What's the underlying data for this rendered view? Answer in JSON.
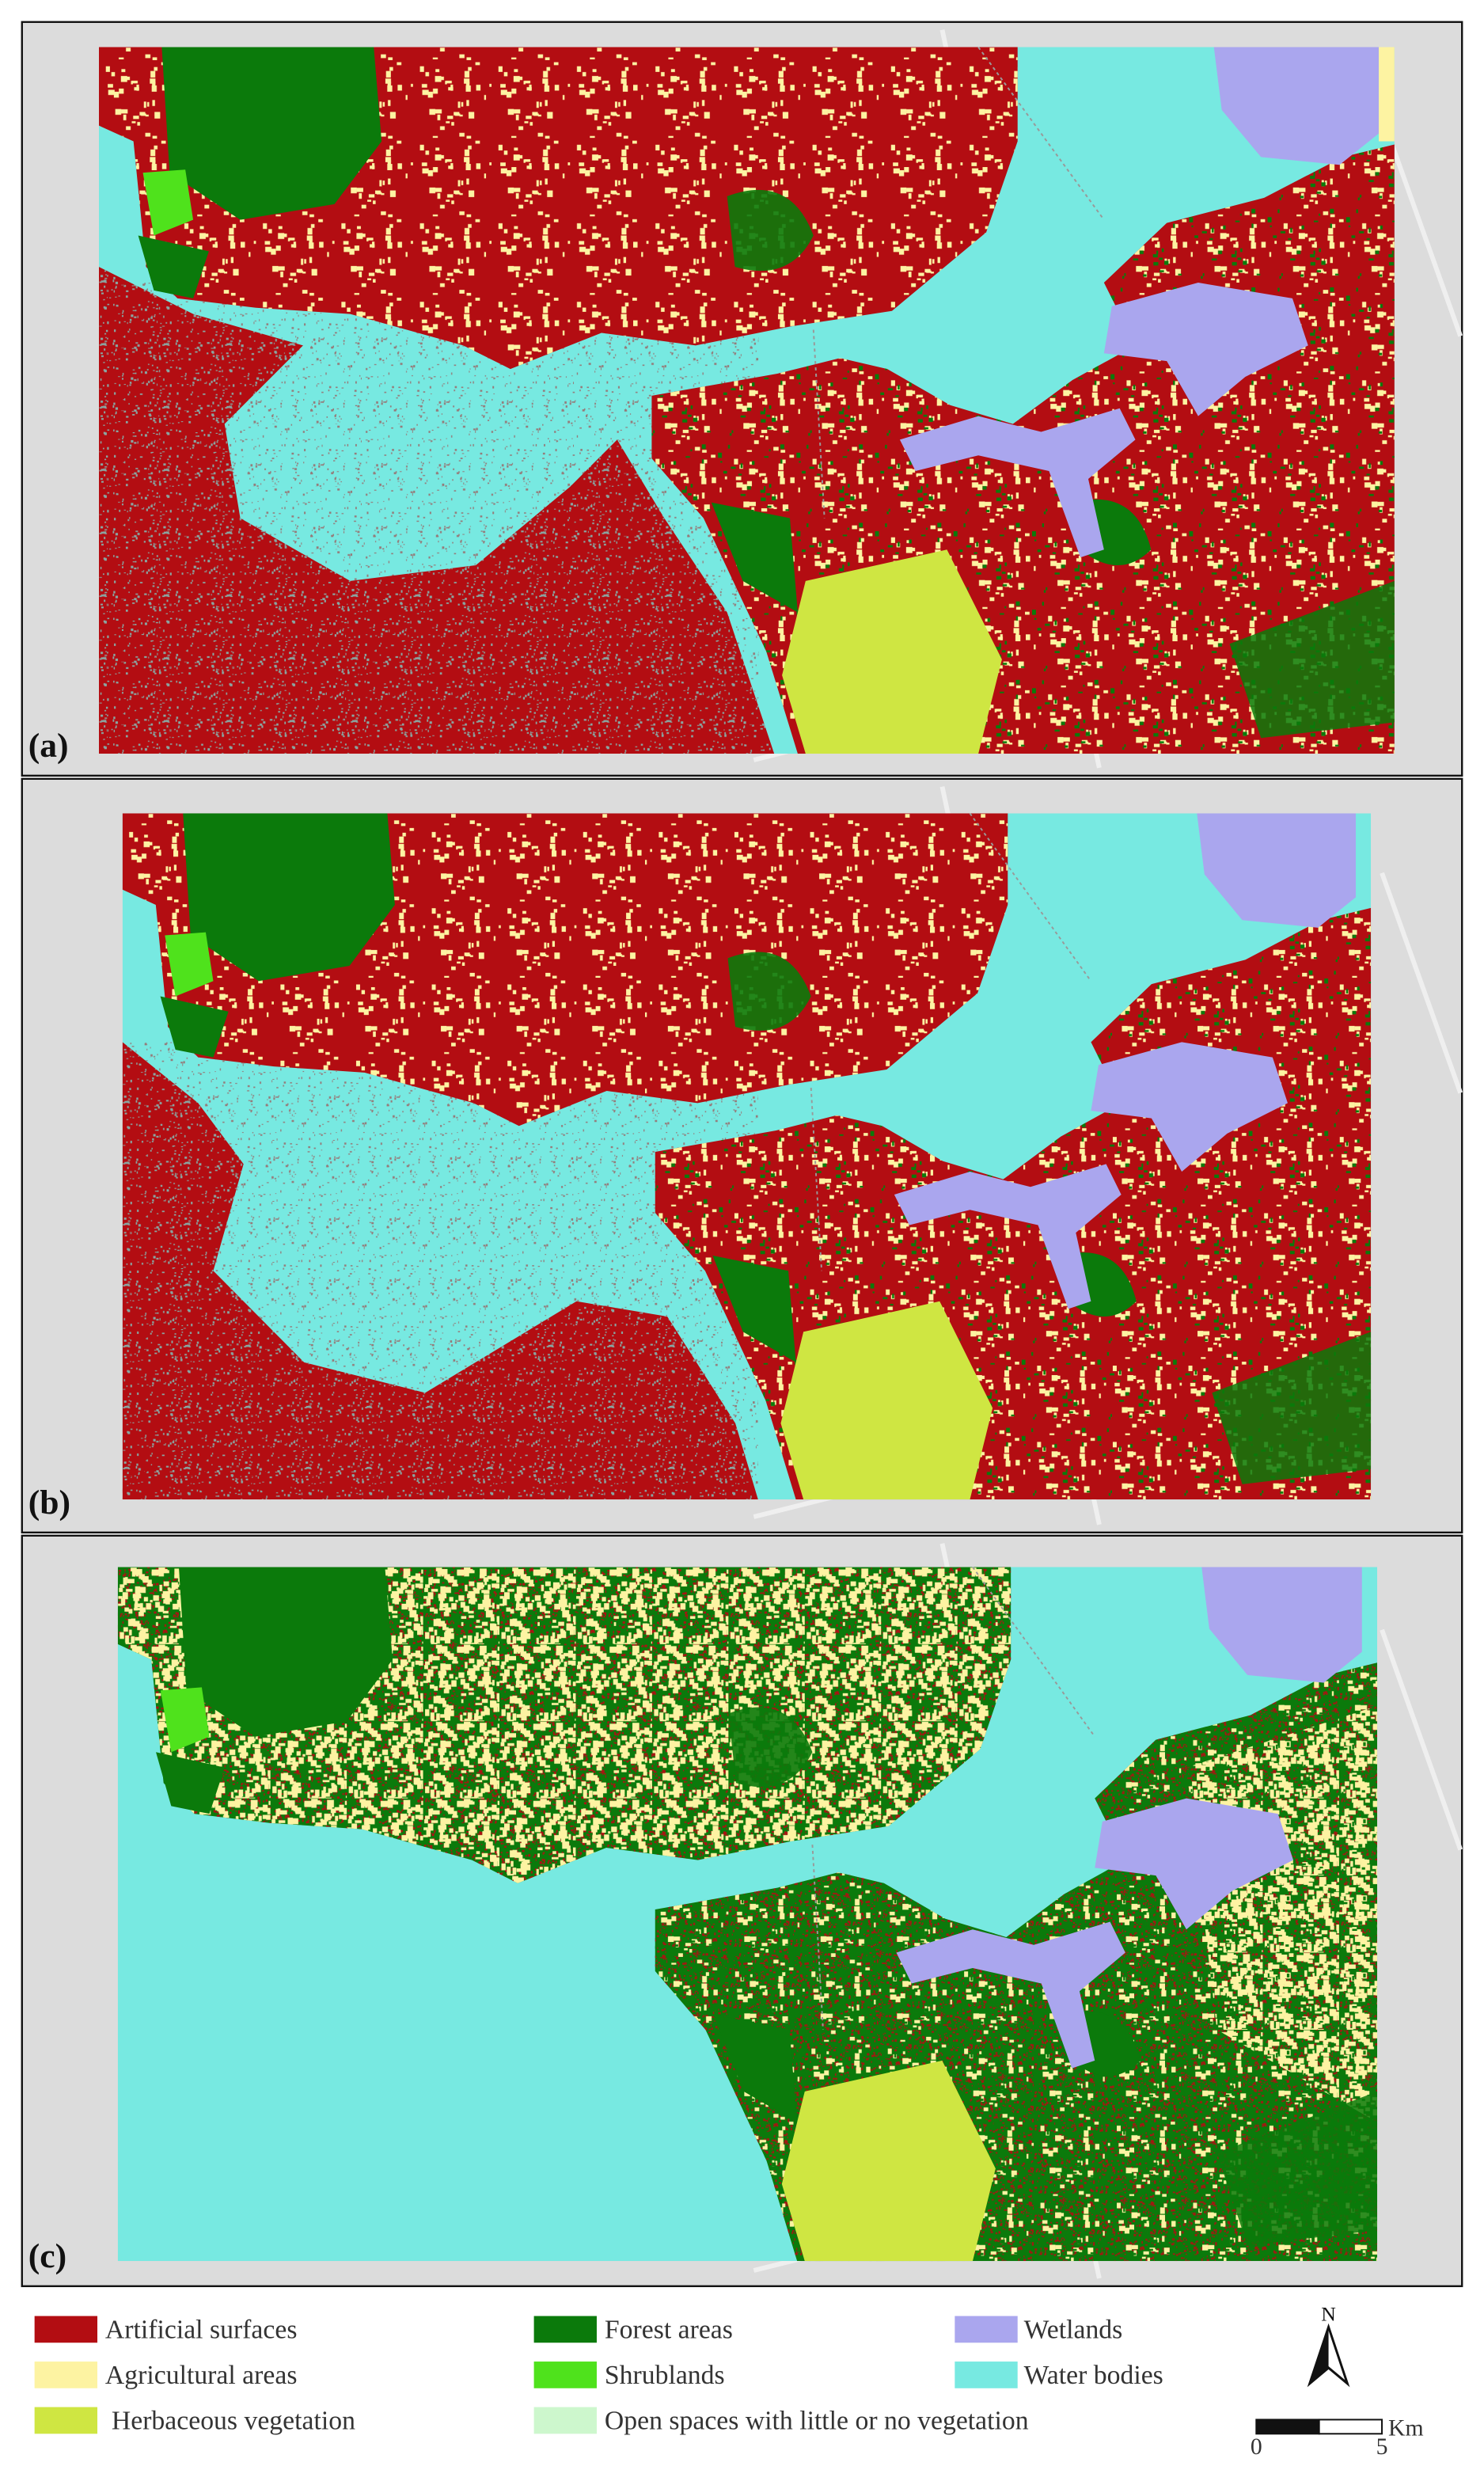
{
  "panels": [
    {
      "label": "(a)"
    },
    {
      "label": "(b)"
    },
    {
      "label": "(c)"
    }
  ],
  "legend": [
    {
      "label": "Artificial surfaces",
      "color": "#b30d12"
    },
    {
      "label": "Forest areas",
      "color": "#0b7a0b"
    },
    {
      "label": "Wetlands",
      "color": "#aaa6ee"
    },
    {
      "label": "Agricultural areas",
      "color": "#fdf3a2"
    },
    {
      "label": "Shrublands",
      "color": "#4fe21c"
    },
    {
      "label": "Water bodies",
      "color": "#77e9e1"
    },
    {
      "label": "Herbaceous vegetation",
      "color": "#cfe642"
    },
    {
      "label": "Open spaces with little or no vegetation",
      "color": "#cdf7cd"
    }
  ],
  "north": "N",
  "scale": {
    "start": "0",
    "end": "5",
    "unit": "Km"
  }
}
